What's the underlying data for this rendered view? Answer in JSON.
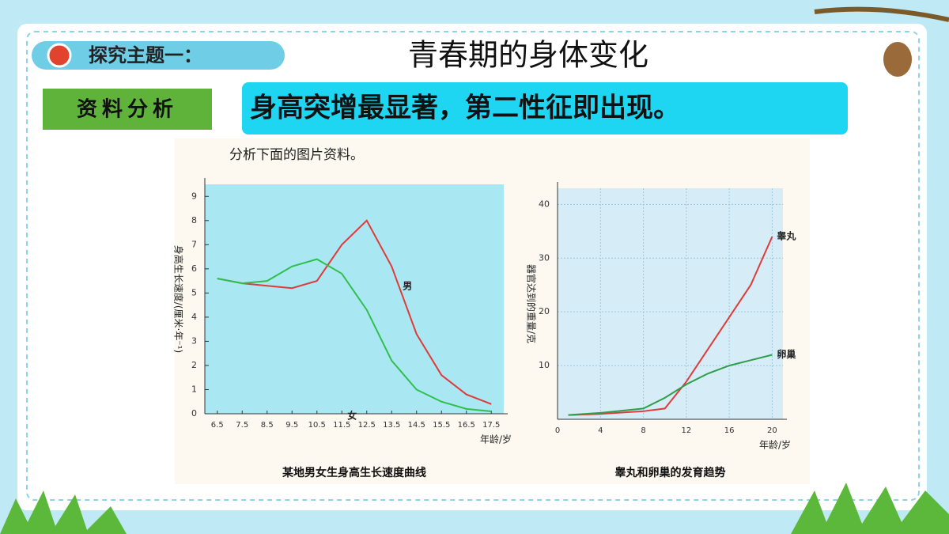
{
  "slide": {
    "topic": "探究主题一：",
    "title": "青春期的身体变化",
    "tag": "资料分析",
    "banner": "身高突增最显著，第二性征即出现。",
    "instruction": "分析下面的图片资料。"
  },
  "chart_data": [
    {
      "type": "line",
      "title": "某地男女生身高生长速度曲线",
      "y_label": "身高生长速度/(厘米·年⁻¹)",
      "x_label": "年龄/岁",
      "x": [
        6.5,
        7.5,
        8.5,
        9.5,
        10.5,
        11.5,
        12.5,
        13.5,
        14.5,
        15.5,
        16.5,
        17.5
      ],
      "series": [
        {
          "name": "男",
          "color": "#e03a3a",
          "values": [
            5.6,
            5.4,
            5.3,
            5.2,
            5.5,
            7.0,
            8.0,
            6.1,
            3.3,
            1.6,
            0.8,
            0.4
          ]
        },
        {
          "name": "女",
          "color": "#2fbf4a",
          "values": [
            5.6,
            5.4,
            5.5,
            6.1,
            6.4,
            5.8,
            4.3,
            2.2,
            1.0,
            0.5,
            0.2,
            0.1
          ]
        }
      ],
      "xlim": [
        6,
        18
      ],
      "ylim": [
        0,
        9.5
      ],
      "xticks": [
        6.5,
        7.5,
        8.5,
        9.5,
        10.5,
        11.5,
        12.5,
        13.5,
        14.5,
        15.5,
        16.5,
        17.5
      ],
      "yticks": [
        0,
        1,
        2,
        3,
        4,
        5,
        6,
        7,
        8,
        9
      ],
      "grid": false,
      "background": "#a9e8f3"
    },
    {
      "type": "line",
      "title": "睾丸和卵巢的发育趋势",
      "y_label": "器官达到的重量/克",
      "x_label": "年龄/岁",
      "x": [
        1,
        4,
        8,
        10,
        12,
        14,
        16,
        18,
        20
      ],
      "series": [
        {
          "name": "睾丸",
          "color": "#e03a3a",
          "values": [
            0.8,
            1,
            1.5,
            2,
            7,
            13,
            19,
            25,
            34
          ]
        },
        {
          "name": "卵巢",
          "color": "#2e9e4a",
          "values": [
            0.8,
            1.2,
            2,
            4,
            6.5,
            8.5,
            10,
            11,
            12
          ]
        }
      ],
      "xlim": [
        0,
        21
      ],
      "ylim": [
        0,
        43
      ],
      "xticks": [
        0,
        4,
        8,
        12,
        16,
        20
      ],
      "yticks": [
        10,
        20,
        30,
        40
      ],
      "grid": true,
      "background": "#d6ecf7"
    }
  ]
}
